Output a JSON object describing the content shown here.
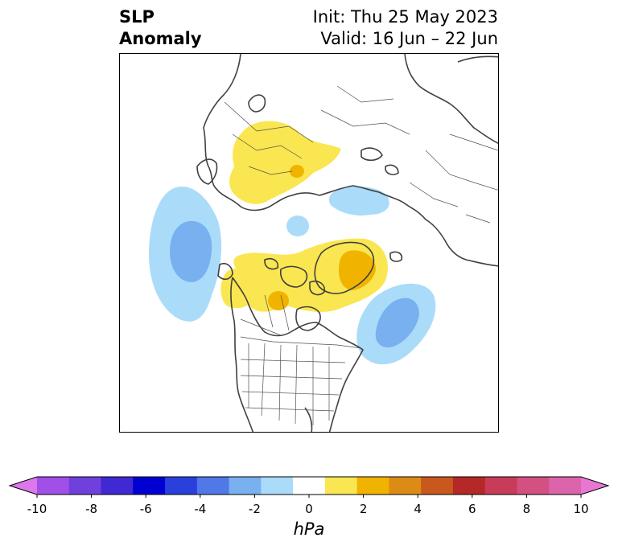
{
  "title": {
    "left_line1": "SLP",
    "left_line2": "Anomaly",
    "init": "Init: Thu 25 May 2023",
    "valid": "Valid: 16 Jun – 22 Jun"
  },
  "colorbar": {
    "units": "hPa",
    "ticks": [
      "-10",
      "-8",
      "-6",
      "-4",
      "-2",
      "0",
      "2",
      "4",
      "6",
      "8",
      "10"
    ],
    "levels": [
      -10,
      -9,
      -8,
      -7,
      -6,
      -5,
      -4,
      -3,
      -2,
      -1,
      1,
      2,
      3,
      4,
      5,
      6,
      7,
      8,
      9,
      10
    ],
    "colors": [
      "#dc78eb",
      "#a050e6",
      "#7040dc",
      "#4028d2",
      "#0000d2",
      "#2a40dc",
      "#5078e6",
      "#78b0f0",
      "#aadcfa",
      "#ffffff",
      "#fae650",
      "#f0b400",
      "#dc8c14",
      "#c8581e",
      "#b42828",
      "#c83c5a",
      "#d25082",
      "#dc64aa",
      "#e678d2"
    ],
    "extend": "both"
  },
  "map": {
    "projection": "north-polar-stereographic",
    "features": [
      "coastlines",
      "country-borders",
      "us-state-borders",
      "canada-province-borders"
    ],
    "anomalies": [
      {
        "name": "scandinavia-russia-high",
        "sign": "positive",
        "peak_hpa": 2
      },
      {
        "name": "siberia-low",
        "sign": "negative",
        "peak_hpa": -2
      },
      {
        "name": "north-atlantic-low",
        "sign": "negative",
        "peak_hpa": -3
      },
      {
        "name": "arctic-canada-high",
        "sign": "positive",
        "peak_hpa": 3
      },
      {
        "name": "western-canada-high",
        "sign": "positive",
        "peak_hpa": 2
      },
      {
        "name": "north-pacific-low",
        "sign": "negative",
        "peak_hpa": -3
      },
      {
        "name": "small-arctic-low",
        "sign": "negative",
        "peak_hpa": -1
      }
    ]
  }
}
